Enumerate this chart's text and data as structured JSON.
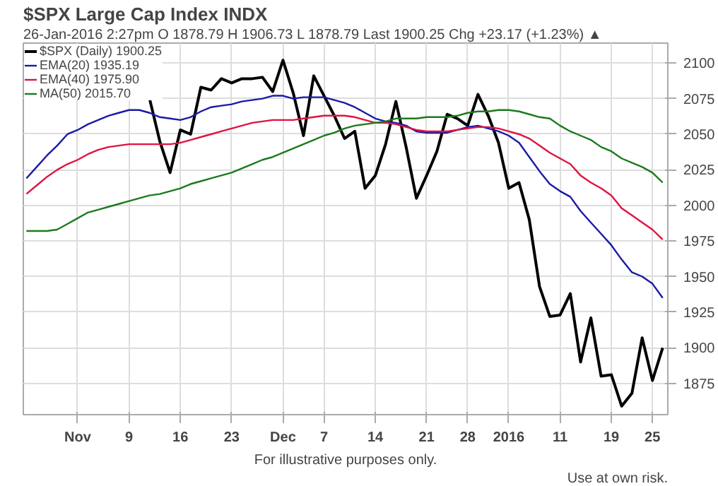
{
  "chart_data": {
    "type": "line",
    "title": "$SPX Large Cap Index INDX",
    "subtitle": "26-Jan-2016 2:27pm   O 1878.79   H 1906.73   L 1878.79   Last 1900.25   Chg +23.17 (+1.23%) ▲",
    "categories": [
      null,
      null,
      null,
      null,
      null,
      "Nov",
      null,
      null,
      null,
      null,
      "9",
      null,
      null,
      null,
      null,
      "16",
      null,
      null,
      null,
      null,
      "23",
      null,
      null,
      null,
      null,
      "Dec",
      null,
      null,
      null,
      "7",
      null,
      null,
      null,
      null,
      "14",
      null,
      null,
      null,
      null,
      "21",
      null,
      null,
      null,
      "28",
      null,
      null,
      null,
      "2016",
      null,
      null,
      null,
      null,
      "11",
      null,
      null,
      null,
      null,
      "19",
      null,
      null,
      null,
      "25",
      null
    ],
    "series": [
      {
        "name": "$SPX (Daily) 1900.25",
        "color": "#000000",
        "values": [
          null,
          null,
          null,
          null,
          null,
          null,
          null,
          null,
          null,
          null,
          null,
          null,
          2075,
          2045,
          2023,
          2053,
          2050,
          2083,
          2081,
          2089,
          2086,
          2089,
          2089,
          2090,
          2080,
          2102,
          2079,
          2049,
          2091,
          2077,
          2063,
          2047,
          2052,
          2012,
          2021,
          2043,
          2073,
          2041,
          2005,
          2021,
          2038,
          2064,
          2061,
          2056,
          2078,
          2063,
          2044,
          2012,
          2016,
          1990,
          1943,
          1922,
          1923,
          1938,
          1890,
          1921,
          1880,
          1881,
          1859,
          1868,
          1907,
          1877,
          1900
        ]
      },
      {
        "name": "EMA(20) 1935.19",
        "color": "#1a1aa6",
        "values": [
          2019,
          2027,
          2035,
          2042,
          2050,
          2053,
          2057,
          2060,
          2063,
          2065,
          2067,
          2067,
          2065,
          2062,
          2061,
          2060,
          2062,
          2066,
          2069,
          2070,
          2071,
          2073,
          2074,
          2075,
          2077,
          2077,
          2075,
          2076,
          2076,
          2076,
          2074,
          2072,
          2069,
          2065,
          2061,
          2059,
          2058,
          2056,
          2052,
          2051,
          2051,
          2051,
          2053,
          2055,
          2056,
          2054,
          2052,
          2049,
          2044,
          2034,
          2024,
          2015,
          2010,
          2006,
          1996,
          1988,
          1980,
          1972,
          1962,
          1953,
          1950,
          1945,
          1935
        ]
      },
      {
        "name": "EMA(40) 1975.90",
        "color": "#e0133f",
        "values": [
          2008,
          2014,
          2020,
          2025,
          2029,
          2032,
          2036,
          2039,
          2041,
          2042,
          2043,
          2043,
          2043,
          2043,
          2043,
          2044,
          2046,
          2048,
          2050,
          2052,
          2054,
          2056,
          2058,
          2059,
          2060,
          2060,
          2060,
          2061,
          2062,
          2063,
          2063,
          2063,
          2062,
          2060,
          2058,
          2058,
          2057,
          2055,
          2053,
          2052,
          2052,
          2052,
          2053,
          2054,
          2055,
          2055,
          2054,
          2052,
          2050,
          2047,
          2042,
          2037,
          2033,
          2029,
          2021,
          2016,
          2012,
          2007,
          1998,
          1993,
          1988,
          1983,
          1976
        ]
      },
      {
        "name": "MA(50) 2015.70",
        "color": "#1d7a1d",
        "values": [
          1982,
          1982,
          1982,
          1983,
          1987,
          1991,
          1995,
          1997,
          1999,
          2001,
          2003,
          2005,
          2007,
          2008,
          2010,
          2012,
          2015,
          2017,
          2019,
          2021,
          2023,
          2026,
          2029,
          2032,
          2034,
          2037,
          2040,
          2043,
          2046,
          2049,
          2051,
          2054,
          2056,
          2057,
          2058,
          2059,
          2061,
          2061,
          2061,
          2062,
          2062,
          2062,
          2063,
          2065,
          2066,
          2066,
          2067,
          2067,
          2066,
          2064,
          2062,
          2061,
          2056,
          2052,
          2049,
          2046,
          2041,
          2038,
          2033,
          2030,
          2027,
          2023,
          2016
        ]
      }
    ],
    "ylim": [
      1853,
      2114
    ],
    "yticks": [
      1875,
      1900,
      1925,
      1950,
      1975,
      2000,
      2025,
      2050,
      2075,
      2100
    ],
    "grid": true,
    "legend": "top left",
    "annotations": [
      "For illustrative purposes only.",
      "Use at own risk."
    ]
  }
}
